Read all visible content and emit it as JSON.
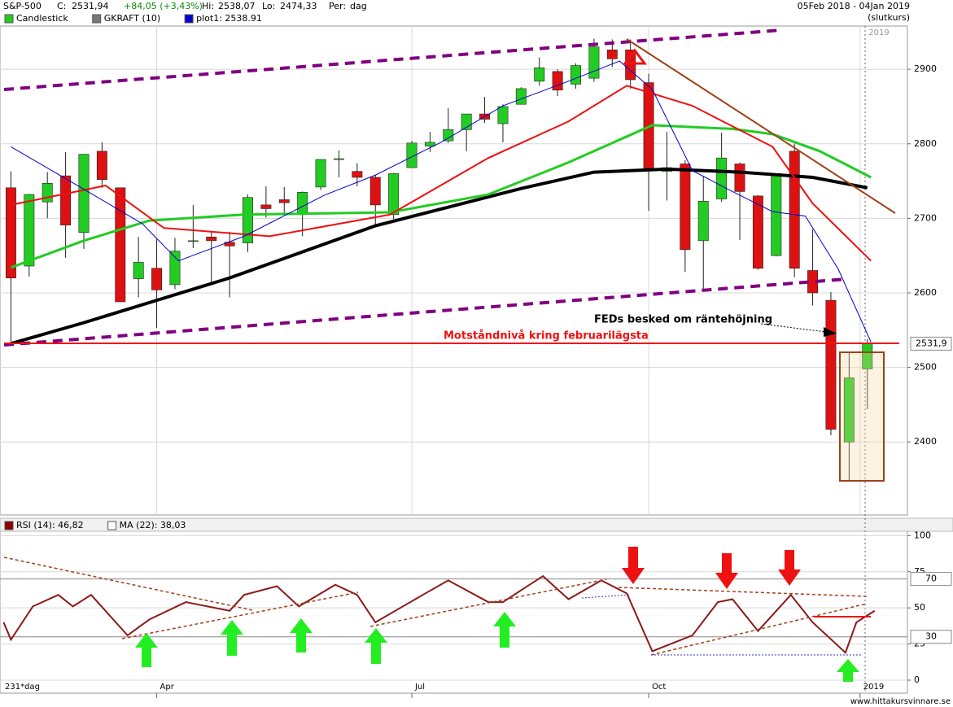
{
  "header": {
    "symbol": "S&P-500",
    "close_label": "C:",
    "close": "2531,94",
    "change": "+84,05 (+3,43%)",
    "high_label": "Hi:",
    "high": "2538,07",
    "low_label": "Lo:",
    "low": "2474,33",
    "period_label": "Per:",
    "period": "dag",
    "range": "05Feb 2018 - 04Jan 2019",
    "price_type": "(slutkurs)",
    "year_marker": "2019"
  },
  "chart_data": [
    {
      "type": "candlestick",
      "legend": [
        "Candlestick",
        "GKRAFT (10)",
        "plot1: 2538.91"
      ],
      "legend_colors": [
        "#22cc22",
        "#777777",
        "#0000cc"
      ],
      "annotations": [
        "FEDs besked om räntehöjning",
        "Motståndnivå kring februarilägsta"
      ],
      "last_price": {
        "value": 2531.9,
        "label": "2531,9"
      },
      "xlim": [
        -3,
        246
      ],
      "xticks": [
        {
          "value": 40,
          "label": "Apr"
        },
        {
          "value": 110,
          "label": "Jul"
        },
        {
          "value": 175,
          "label": "Oct"
        },
        {
          "value": 233,
          "label": "2019"
        }
      ],
      "x_note": "231*dag",
      "ylim": [
        2302,
        2958
      ],
      "yticks": [
        2400,
        2500,
        2600,
        2700,
        2800,
        2900
      ],
      "grid": true,
      "up_color": "#22cc22",
      "down_color": "#dd1111",
      "candles": {
        "x": [
          0,
          5,
          10,
          15,
          20,
          25,
          30,
          35,
          40,
          45,
          50,
          55,
          60,
          65,
          70,
          75,
          80,
          85,
          90,
          95,
          100,
          105,
          110,
          115,
          120,
          125,
          130,
          135,
          140,
          145,
          150,
          155,
          160,
          165,
          170,
          175,
          180,
          185,
          190,
          195,
          200,
          205,
          210,
          215,
          220,
          225,
          230,
          235
        ],
        "open": [
          2741,
          2636,
          2722,
          2757,
          2681,
          2790,
          2741,
          2619,
          2633,
          2611,
          2670,
          2675,
          2668,
          2667,
          2718,
          2725,
          2705,
          2742,
          2780,
          2763,
          2755,
          2705,
          2768,
          2797,
          2804,
          2819,
          2840,
          2827,
          2853,
          2884,
          2897,
          2880,
          2888,
          2926,
          2926,
          2882,
          2763,
          2773,
          2670,
          2726,
          2773,
          2730,
          2650,
          2790,
          2630,
          2590,
          2400,
          2498
        ],
        "high": [
          2763,
          2733,
          2762,
          2789,
          2786,
          2802,
          2741,
          2675,
          2672,
          2674,
          2718,
          2683,
          2682,
          2732,
          2743,
          2742,
          2736,
          2779,
          2791,
          2774,
          2758,
          2761,
          2804,
          2816,
          2848,
          2840,
          2863,
          2853,
          2876,
          2916,
          2900,
          2908,
          2941,
          2940,
          2940,
          2894,
          2816,
          2778,
          2756,
          2815,
          2775,
          2731,
          2760,
          2800,
          2685,
          2601,
          2520,
          2538
        ],
        "low": [
          2532,
          2622,
          2700,
          2647,
          2659,
          2741,
          2588,
          2594,
          2553,
          2605,
          2660,
          2613,
          2594,
          2655,
          2701,
          2707,
          2676,
          2738,
          2755,
          2743,
          2692,
          2699,
          2770,
          2789,
          2801,
          2790,
          2828,
          2802,
          2853,
          2878,
          2864,
          2874,
          2883,
          2903,
          2874,
          2710,
          2724,
          2628,
          2603,
          2722,
          2671,
          2631,
          2649,
          2621,
          2583,
          2409,
          2347,
          2444
        ],
        "close": [
          2620,
          2732,
          2747,
          2691,
          2786,
          2752,
          2588,
          2641,
          2604,
          2656,
          2670,
          2670,
          2663,
          2728,
          2713,
          2721,
          2735,
          2779,
          2780,
          2755,
          2718,
          2760,
          2801,
          2802,
          2819,
          2840,
          2833,
          2850,
          2874,
          2902,
          2872,
          2905,
          2930,
          2914,
          2886,
          2767,
          2768,
          2658,
          2723,
          2781,
          2736,
          2633,
          2760,
          2633,
          2600,
          2417,
          2486,
          2532
        ]
      },
      "lines": [
        {
          "name": "MA200",
          "color": "#000000",
          "width": 4,
          "x": [
            0,
            20,
            40,
            60,
            80,
            100,
            120,
            140,
            160,
            180,
            200,
            220,
            235
          ],
          "values": [
            2532,
            2560,
            2590,
            2620,
            2655,
            2690,
            2715,
            2740,
            2762,
            2766,
            2762,
            2755,
            2741
          ]
        },
        {
          "name": "MA50",
          "color": "#22cc22",
          "width": 3,
          "x": [
            0,
            20,
            38,
            64,
            104,
            131,
            153,
            176,
            198,
            209,
            222,
            236
          ],
          "values": [
            2634,
            2670,
            2697,
            2705,
            2708,
            2732,
            2775,
            2825,
            2820,
            2813,
            2790,
            2755
          ]
        },
        {
          "name": "MA20",
          "color": "#ee1111",
          "width": 2,
          "x": [
            0,
            26,
            42,
            71,
            104,
            131,
            153,
            169,
            187,
            209,
            220,
            236
          ],
          "values": [
            2718,
            2744,
            2687,
            2676,
            2705,
            2781,
            2830,
            2878,
            2851,
            2796,
            2720,
            2643
          ]
        },
        {
          "name": "plot1",
          "color": "#0000cc",
          "width": 1,
          "x": [
            0,
            19,
            36,
            46,
            64,
            86,
            100,
            118,
            135,
            153,
            167,
            176,
            187,
            198,
            209,
            218,
            227,
            236
          ],
          "values": [
            2796,
            2742,
            2693,
            2643,
            2676,
            2731,
            2758,
            2802,
            2851,
            2884,
            2911,
            2873,
            2764,
            2736,
            2709,
            2703,
            2632,
            2534
          ]
        }
      ]
    },
    {
      "type": "line",
      "legend": [
        "RSI (14): 46,82",
        "MA (22): 38,03"
      ],
      "legend_colors": [
        "#8b0000",
        "#ffffff"
      ],
      "xlim": [
        -3,
        246
      ],
      "ylim": [
        -9,
        103
      ],
      "yticks": [
        0,
        25,
        50,
        75,
        100
      ],
      "levels": [
        70,
        30
      ],
      "series": [
        {
          "name": "RSI",
          "color": "#8b1a1a",
          "x": [
            -2,
            0,
            6,
            13,
            17,
            22,
            32,
            38,
            48,
            60,
            64,
            73,
            79,
            89,
            95,
            100,
            113,
            120,
            131,
            135,
            146,
            153,
            162,
            169,
            176,
            187,
            194,
            198,
            205,
            214,
            220,
            229,
            232,
            237
          ],
          "values": [
            40,
            28,
            51,
            59,
            51,
            59,
            31,
            42,
            54,
            48,
            59,
            65,
            51,
            66,
            59,
            40,
            59,
            69,
            54,
            54,
            72,
            56,
            69,
            60,
            20,
            31,
            54,
            56,
            34,
            59,
            40,
            19,
            40,
            48
          ]
        }
      ]
    }
  ],
  "footer": "www.hittakursvinnare.se"
}
